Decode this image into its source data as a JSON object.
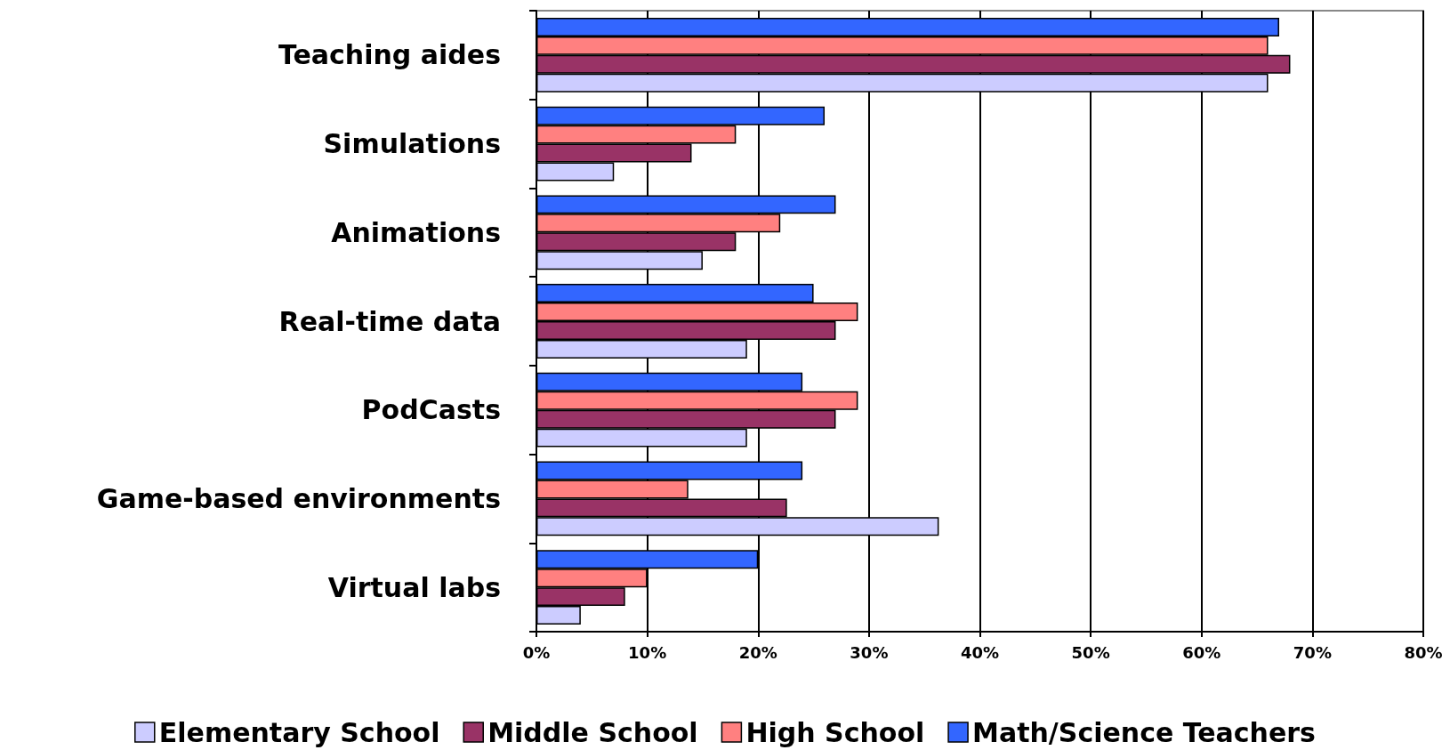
{
  "chart_data": {
    "type": "bar",
    "orientation": "horizontal",
    "categories": [
      "Teaching aides",
      "Simulations",
      "Animations",
      "Real-time data",
      "PodCasts",
      "Game-based environments",
      "Virtual labs"
    ],
    "series": [
      {
        "name": "Elementary School",
        "color": "#ccccff",
        "values": [
          66,
          7,
          15,
          19,
          19,
          36.3,
          4
        ]
      },
      {
        "name": "Middle School",
        "color": "#993366",
        "values": [
          68,
          14,
          18,
          27,
          27,
          22.6,
          8
        ]
      },
      {
        "name": "High School",
        "color": "#ff8080",
        "values": [
          66,
          18,
          22,
          29,
          29,
          13.7,
          10
        ]
      },
      {
        "name": "Math/Science Teachers",
        "color": "#3366ff",
        "values": [
          67,
          26,
          27,
          25,
          24,
          24,
          20
        ]
      }
    ],
    "xlim": [
      0,
      80
    ],
    "xticks": [
      {
        "value": 0,
        "label": "0%"
      },
      {
        "value": 10,
        "label": "10%"
      },
      {
        "value": 20,
        "label": "20%"
      },
      {
        "value": 30,
        "label": "30%"
      },
      {
        "value": 40,
        "label": "40%"
      },
      {
        "value": 50,
        "label": "50%"
      },
      {
        "value": 60,
        "label": "60%"
      },
      {
        "value": 70,
        "label": "70%"
      },
      {
        "value": 80,
        "label": "80%"
      }
    ],
    "grid": "x",
    "legend": "bottom"
  }
}
